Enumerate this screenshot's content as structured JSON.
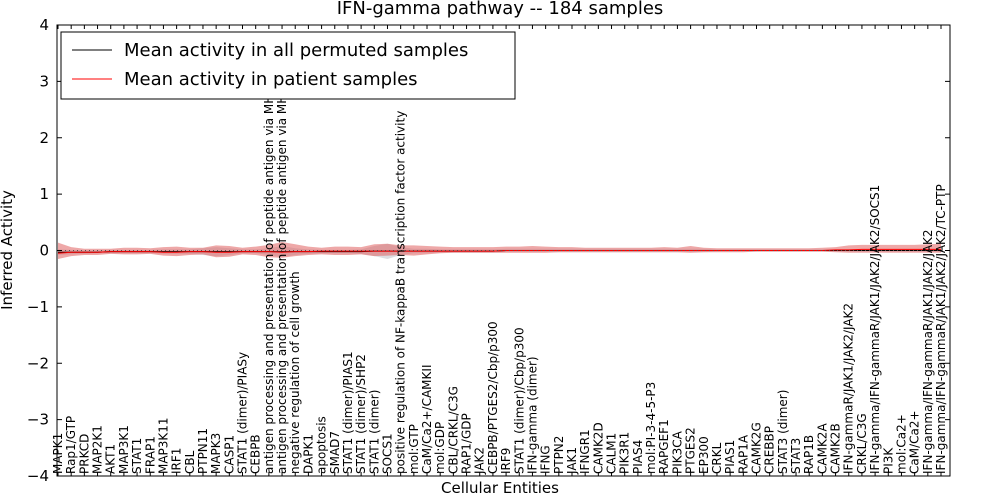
{
  "chart_data": {
    "type": "line",
    "title": "IFN-gamma pathway -- 184 samples",
    "xlabel": "Cellular Entities",
    "ylabel": "Inferred Activity",
    "ylim": [
      -4,
      4
    ],
    "yticks": [
      -4,
      -3,
      -2,
      -1,
      0,
      1,
      2,
      3,
      4
    ],
    "ytick_labels": [
      "−4",
      "−3",
      "−2",
      "−1",
      "0",
      "1",
      "2",
      "3",
      "4"
    ],
    "grid": false,
    "legend_position": "top-left",
    "categories": [
      "MAPK1",
      "Rap1/GTP",
      "PRKCD",
      "MAP2K1",
      "AKT1",
      "MAP3K1",
      "STAT1",
      "FRAP1",
      "MAP3K11",
      "IRF1",
      "CBL",
      "PTPN11",
      "MAPK3",
      "CASP1",
      "STAT1 (dimer)/PIASy",
      "CEBPB",
      "antigen processing and presentation of peptide antigen via MHC class I",
      "antigen processing and presentation of peptide antigen via MHC class II",
      "negative regulation of cell growth",
      "DAPK1",
      "apoptosis",
      "SMAD7",
      "STAT1 (dimer)/PIAS1",
      "STAT1 (dimer)/SHP2",
      "STAT1 (dimer)",
      "SOCS1",
      "positive regulation of NF-kappaB transcription factor activity",
      "mol:GTP",
      "CaM/Ca2+/CAMKII",
      "mol:GDP",
      "CBL/CRKL/C3G",
      "RAP1/GDP",
      "JAK2",
      "CEBPB/PTGES2/Cbp/p300",
      "IRF9",
      "STAT1 (dimer)/Cbp/p300",
      "IFN-gamma (dimer)",
      "IFNG",
      "PTPN2",
      "JAK1",
      "IFNGR1",
      "CAMK2D",
      "CALM1",
      "PIK3R1",
      "PIAS4",
      "mol:PI-3-4-5-P3",
      "RAPGEF1",
      "PIK3CA",
      "PTGES2",
      "EP300",
      "CRKL",
      "PIAS1",
      "RAP1A",
      "CAMK2G",
      "CREBBP",
      "STAT3 (dimer)",
      "STAT3",
      "RAP1B",
      "CAMK2A",
      "CAMK2B",
      "IFN-gammaR/JAK1/JAK2/JAK2",
      "CRKL/C3G",
      "IFN-gamma/IFN-gammaR/JAK1/JAK2/JAK2/SOCS1",
      "PI3K",
      "mol:Ca2+",
      "CaM/Ca2+",
      "IFN-gamma/IFN-gammaR/JAK1/JAK2/JAK2",
      "IFN-gamma/IFN-gammaR/JAK1/JAK2/JAK2/TC-PTP"
    ],
    "series": [
      {
        "name": "Mean activity in all permuted samples",
        "color": "#000000",
        "values": [
          -0.03,
          -0.03,
          -0.03,
          -0.03,
          -0.02,
          -0.02,
          -0.02,
          -0.02,
          -0.02,
          -0.02,
          -0.02,
          -0.02,
          -0.02,
          -0.02,
          -0.02,
          -0.02,
          -0.02,
          -0.02,
          -0.02,
          -0.02,
          -0.02,
          -0.02,
          -0.02,
          -0.02,
          -0.01,
          -0.01,
          -0.01,
          -0.01,
          -0.01,
          -0.01,
          -0.01,
          -0.01,
          -0.01,
          -0.01,
          0.0,
          0.0,
          0.0,
          0.0,
          0.0,
          0.0,
          0.0,
          0.0,
          0.0,
          0.0,
          0.0,
          0.0,
          0.0,
          0.0,
          0.0,
          0.0,
          0.0,
          0.0,
          0.0,
          0.0,
          0.0,
          0.0,
          0.0,
          0.0,
          0.0,
          0.0,
          0.0,
          0.0,
          0.0,
          0.0,
          0.0,
          0.0,
          0.0,
          0.0
        ],
        "band_lower": [
          -0.08,
          -0.07,
          -0.06,
          -0.05,
          -0.05,
          -0.05,
          -0.05,
          -0.05,
          -0.06,
          -0.06,
          -0.06,
          -0.08,
          -0.1,
          -0.08,
          -0.05,
          -0.05,
          -0.08,
          -0.12,
          -0.08,
          -0.06,
          -0.05,
          -0.05,
          -0.05,
          -0.06,
          -0.1,
          -0.15,
          -0.08,
          -0.05,
          -0.05,
          -0.04,
          -0.04,
          -0.04,
          -0.04,
          -0.04,
          -0.03,
          -0.03,
          -0.03,
          -0.03,
          -0.03,
          -0.03,
          -0.03,
          -0.03,
          -0.03,
          -0.03,
          -0.03,
          -0.03,
          -0.03,
          -0.03,
          -0.03,
          -0.03,
          -0.02,
          -0.02,
          -0.02,
          -0.02,
          -0.02,
          -0.02,
          -0.02,
          -0.02,
          -0.02,
          -0.02,
          -0.02,
          -0.02,
          -0.02,
          -0.02,
          -0.02,
          -0.02,
          -0.02,
          -0.02
        ],
        "band_upper": [
          0.02,
          0.01,
          0.0,
          0.0,
          0.01,
          0.01,
          0.01,
          0.01,
          0.02,
          0.02,
          0.02,
          0.04,
          0.06,
          0.04,
          0.02,
          0.02,
          0.04,
          0.08,
          0.04,
          0.02,
          0.01,
          0.01,
          0.01,
          0.02,
          0.08,
          0.12,
          0.06,
          0.03,
          0.03,
          0.02,
          0.02,
          0.02,
          0.02,
          0.02,
          0.03,
          0.03,
          0.03,
          0.03,
          0.03,
          0.03,
          0.03,
          0.03,
          0.03,
          0.03,
          0.03,
          0.03,
          0.03,
          0.03,
          0.03,
          0.03,
          0.02,
          0.02,
          0.02,
          0.02,
          0.02,
          0.02,
          0.02,
          0.02,
          0.02,
          0.02,
          0.02,
          0.02,
          0.02,
          0.02,
          0.02,
          0.02,
          0.02,
          0.02
        ]
      },
      {
        "name": "Mean activity in patient samples",
        "color": "#ff0000",
        "values": [
          -0.05,
          -0.03,
          -0.03,
          -0.03,
          -0.02,
          -0.02,
          -0.02,
          -0.02,
          -0.03,
          -0.03,
          -0.02,
          -0.02,
          -0.03,
          -0.03,
          -0.02,
          -0.02,
          -0.02,
          -0.03,
          -0.02,
          -0.02,
          -0.01,
          -0.01,
          -0.01,
          -0.01,
          -0.01,
          -0.01,
          -0.01,
          -0.01,
          -0.01,
          -0.01,
          -0.01,
          -0.01,
          -0.01,
          -0.01,
          0.0,
          0.0,
          0.0,
          0.0,
          0.0,
          0.0,
          0.0,
          0.0,
          0.0,
          0.0,
          0.0,
          0.0,
          0.0,
          0.0,
          0.0,
          0.0,
          0.0,
          0.0,
          0.0,
          0.0,
          0.0,
          0.0,
          0.0,
          0.0,
          0.0,
          0.01,
          0.01,
          0.02,
          0.02,
          0.02,
          0.02,
          0.02,
          0.02,
          0.02
        ],
        "band_lower": [
          -0.15,
          -0.1,
          -0.08,
          -0.08,
          -0.06,
          -0.07,
          -0.07,
          -0.06,
          -0.09,
          -0.1,
          -0.08,
          -0.07,
          -0.12,
          -0.11,
          -0.07,
          -0.08,
          -0.12,
          -0.13,
          -0.1,
          -0.08,
          -0.07,
          -0.08,
          -0.08,
          -0.07,
          -0.1,
          -0.09,
          -0.08,
          -0.09,
          -0.07,
          -0.05,
          -0.04,
          -0.04,
          -0.04,
          -0.04,
          -0.04,
          -0.04,
          -0.04,
          -0.04,
          -0.03,
          -0.03,
          -0.03,
          -0.03,
          -0.03,
          -0.03,
          -0.03,
          -0.03,
          -0.03,
          -0.03,
          -0.04,
          -0.03,
          -0.03,
          -0.03,
          -0.03,
          -0.02,
          -0.02,
          -0.02,
          -0.02,
          -0.02,
          -0.02,
          -0.03,
          -0.04,
          -0.04,
          -0.04,
          -0.04,
          -0.04,
          -0.04,
          -0.04,
          -0.04
        ],
        "band_upper": [
          0.14,
          0.06,
          0.03,
          0.03,
          0.03,
          0.05,
          0.05,
          0.04,
          0.06,
          0.07,
          0.05,
          0.05,
          0.09,
          0.08,
          0.05,
          0.07,
          0.1,
          0.15,
          0.11,
          0.07,
          0.05,
          0.07,
          0.07,
          0.06,
          0.11,
          0.12,
          0.09,
          0.09,
          0.08,
          0.07,
          0.06,
          0.06,
          0.06,
          0.06,
          0.07,
          0.07,
          0.08,
          0.07,
          0.06,
          0.06,
          0.05,
          0.05,
          0.05,
          0.05,
          0.05,
          0.05,
          0.06,
          0.05,
          0.08,
          0.05,
          0.04,
          0.04,
          0.04,
          0.04,
          0.04,
          0.04,
          0.04,
          0.04,
          0.05,
          0.06,
          0.09,
          0.1,
          0.1,
          0.1,
          0.1,
          0.1,
          0.11,
          0.12
        ]
      }
    ]
  }
}
